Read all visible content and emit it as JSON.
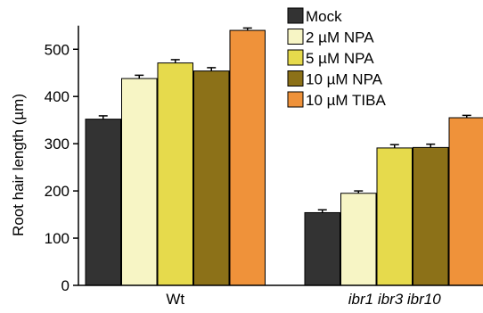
{
  "chart_data": {
    "type": "bar",
    "title": "",
    "xlabel": "",
    "ylabel": "Root hair length (µm)",
    "ylim": [
      0,
      550
    ],
    "yticks": [
      0,
      100,
      200,
      300,
      400,
      500
    ],
    "grid": false,
    "legend_position": "top-right",
    "categories": [
      "Wt",
      "ibr1 ibr3 ibr10"
    ],
    "category_italic": [
      false,
      true
    ],
    "error_bars": true,
    "series": [
      {
        "name": "Mock",
        "color": "#333333",
        "values": [
          352,
          154
        ],
        "errors": [
          7,
          6
        ]
      },
      {
        "name": "2 µM NPA",
        "color": "#f7f5c5",
        "values": [
          438,
          195
        ],
        "errors": [
          7,
          5
        ]
      },
      {
        "name": "5 µM NPA",
        "color": "#e6da4c",
        "values": [
          471,
          291
        ],
        "errors": [
          7,
          7
        ]
      },
      {
        "name": "10 µM NPA",
        "color": "#8c7118",
        "values": [
          454,
          292
        ],
        "errors": [
          7,
          7
        ]
      },
      {
        "name": "10 µM TIBA",
        "color": "#ef923a",
        "values": [
          540,
          355
        ],
        "errors": [
          5,
          5
        ]
      }
    ]
  }
}
